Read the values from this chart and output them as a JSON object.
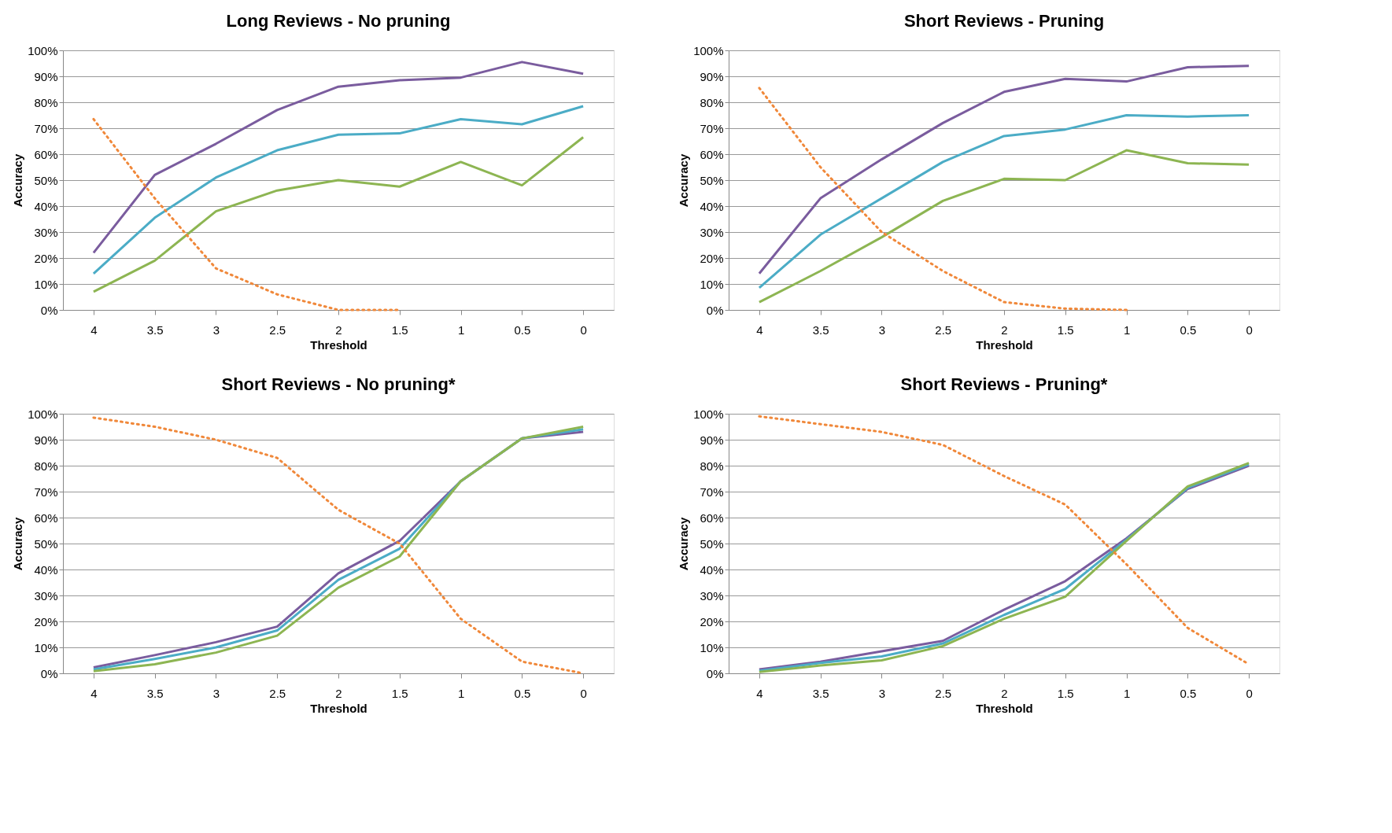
{
  "chart_data": [
    {
      "type": "line",
      "title": "Long Reviews  - No pruning",
      "xlabel": "Threshold",
      "ylabel": "Accuracy",
      "grid": "y",
      "marker": "none",
      "categories": [
        "4",
        "3.5",
        "3",
        "2.5",
        "2",
        "1.5",
        "1",
        "0.5",
        "0"
      ],
      "ylim": [
        0,
        100
      ],
      "yticks": [
        {
          "value": 0,
          "label": "0%"
        },
        {
          "value": 10,
          "label": "10%"
        },
        {
          "value": 20,
          "label": "20%"
        },
        {
          "value": 30,
          "label": "30%"
        },
        {
          "value": 40,
          "label": "40%"
        },
        {
          "value": 50,
          "label": "50%"
        },
        {
          "value": 60,
          "label": "60%"
        },
        {
          "value": 70,
          "label": "70%"
        },
        {
          "value": 80,
          "label": "80%"
        },
        {
          "value": 90,
          "label": "90%"
        },
        {
          "value": 100,
          "label": "100%"
        }
      ],
      "series": [
        {
          "color": "#7a5c9e",
          "line_style": "solid",
          "values": [
            22,
            52,
            64,
            77,
            86,
            88.5,
            89.5,
            95.5,
            91
          ]
        },
        {
          "color": "#4bacc6",
          "line_style": "solid",
          "values": [
            14,
            35.5,
            51,
            61.5,
            67.5,
            68,
            73.5,
            71.5,
            78.5
          ]
        },
        {
          "color": "#8db552",
          "line_style": "solid",
          "values": [
            7,
            19,
            38,
            46,
            50,
            47.5,
            57,
            48,
            66.5
          ]
        },
        {
          "color": "#f0883a",
          "line_style": "dotted",
          "values": [
            73.5,
            43,
            16,
            6,
            0,
            0,
            null,
            null,
            null
          ]
        }
      ]
    },
    {
      "type": "line",
      "title": "Short Reviews  - Pruning",
      "xlabel": "Threshold",
      "ylabel": "Accuracy",
      "grid": "y",
      "marker": "none",
      "categories": [
        "4",
        "3.5",
        "3",
        "2.5",
        "2",
        "1.5",
        "1",
        "0.5",
        "0"
      ],
      "ylim": [
        0,
        100
      ],
      "yticks": [
        {
          "value": 0,
          "label": "0%"
        },
        {
          "value": 10,
          "label": "10%"
        },
        {
          "value": 20,
          "label": "20%"
        },
        {
          "value": 30,
          "label": "30%"
        },
        {
          "value": 40,
          "label": "40%"
        },
        {
          "value": 50,
          "label": "50%"
        },
        {
          "value": 60,
          "label": "60%"
        },
        {
          "value": 70,
          "label": "70%"
        },
        {
          "value": 80,
          "label": "80%"
        },
        {
          "value": 90,
          "label": "90%"
        },
        {
          "value": 100,
          "label": "100%"
        }
      ],
      "series": [
        {
          "color": "#7a5c9e",
          "line_style": "solid",
          "values": [
            14,
            43,
            58,
            72,
            84,
            89,
            88,
            93.5,
            94
          ]
        },
        {
          "color": "#4bacc6",
          "line_style": "solid",
          "values": [
            8.5,
            29,
            43,
            57,
            67,
            69.5,
            75,
            74.5,
            75
          ]
        },
        {
          "color": "#8db552",
          "line_style": "solid",
          "values": [
            3,
            15,
            28,
            42,
            50.5,
            50,
            61.5,
            56.5,
            56
          ]
        },
        {
          "color": "#f0883a",
          "line_style": "dotted",
          "values": [
            85.5,
            55,
            30,
            15,
            3,
            0.5,
            0,
            null,
            null
          ]
        }
      ]
    },
    {
      "type": "line",
      "title": "Short Reviews  - No pruning*",
      "xlabel": "Threshold",
      "ylabel": "Accuracy",
      "grid": "y",
      "marker": "none",
      "categories": [
        "4",
        "3.5",
        "3",
        "2.5",
        "2",
        "1.5",
        "1",
        "0.5",
        "0"
      ],
      "ylim": [
        0,
        100
      ],
      "yticks": [
        {
          "value": 0,
          "label": "0%"
        },
        {
          "value": 10,
          "label": "10%"
        },
        {
          "value": 20,
          "label": "20%"
        },
        {
          "value": 30,
          "label": "30%"
        },
        {
          "value": 40,
          "label": "40%"
        },
        {
          "value": 50,
          "label": "50%"
        },
        {
          "value": 60,
          "label": "60%"
        },
        {
          "value": 70,
          "label": "70%"
        },
        {
          "value": 80,
          "label": "80%"
        },
        {
          "value": 90,
          "label": "90%"
        },
        {
          "value": 100,
          "label": "100%"
        }
      ],
      "series": [
        {
          "color": "#7a5c9e",
          "line_style": "solid",
          "values": [
            2.3,
            7,
            12,
            18,
            38.5,
            51,
            74,
            90.5,
            93
          ]
        },
        {
          "color": "#4bacc6",
          "line_style": "solid",
          "values": [
            1.5,
            5.5,
            10,
            16.5,
            36,
            48,
            74,
            90.5,
            94
          ]
        },
        {
          "color": "#8db552",
          "line_style": "solid",
          "values": [
            0.8,
            3.5,
            8,
            14.5,
            33,
            45,
            74,
            90.5,
            95
          ]
        },
        {
          "color": "#f0883a",
          "line_style": "dotted",
          "values": [
            98.5,
            95,
            90,
            83,
            63,
            50,
            21,
            4.5,
            0
          ]
        }
      ]
    },
    {
      "type": "line",
      "title": "Short Reviews  - Pruning*",
      "xlabel": "Threshold",
      "ylabel": "Accuracy",
      "grid": "y",
      "marker": "none",
      "categories": [
        "4",
        "3.5",
        "3",
        "2.5",
        "2",
        "1.5",
        "1",
        "0.5",
        "0"
      ],
      "ylim": [
        0,
        100
      ],
      "yticks": [
        {
          "value": 0,
          "label": "0%"
        },
        {
          "value": 10,
          "label": "10%"
        },
        {
          "value": 20,
          "label": "20%"
        },
        {
          "value": 30,
          "label": "30%"
        },
        {
          "value": 40,
          "label": "40%"
        },
        {
          "value": 50,
          "label": "50%"
        },
        {
          "value": 60,
          "label": "60%"
        },
        {
          "value": 70,
          "label": "70%"
        },
        {
          "value": 80,
          "label": "80%"
        },
        {
          "value": 90,
          "label": "90%"
        },
        {
          "value": 100,
          "label": "100%"
        }
      ],
      "series": [
        {
          "color": "#7a5c9e",
          "line_style": "solid",
          "values": [
            1.5,
            4.5,
            8.5,
            12.5,
            24.5,
            35.5,
            52,
            71,
            80
          ]
        },
        {
          "color": "#4bacc6",
          "line_style": "solid",
          "values": [
            1,
            4,
            6.5,
            11.5,
            22.5,
            32.5,
            51.5,
            71.5,
            80.5
          ]
        },
        {
          "color": "#8db552",
          "line_style": "solid",
          "values": [
            0.5,
            3,
            5,
            10.5,
            21,
            29.5,
            51,
            72,
            81
          ]
        },
        {
          "color": "#f0883a",
          "line_style": "dotted",
          "values": [
            99,
            96,
            93,
            88,
            76,
            65,
            42,
            17.5,
            3.5
          ]
        }
      ]
    }
  ]
}
